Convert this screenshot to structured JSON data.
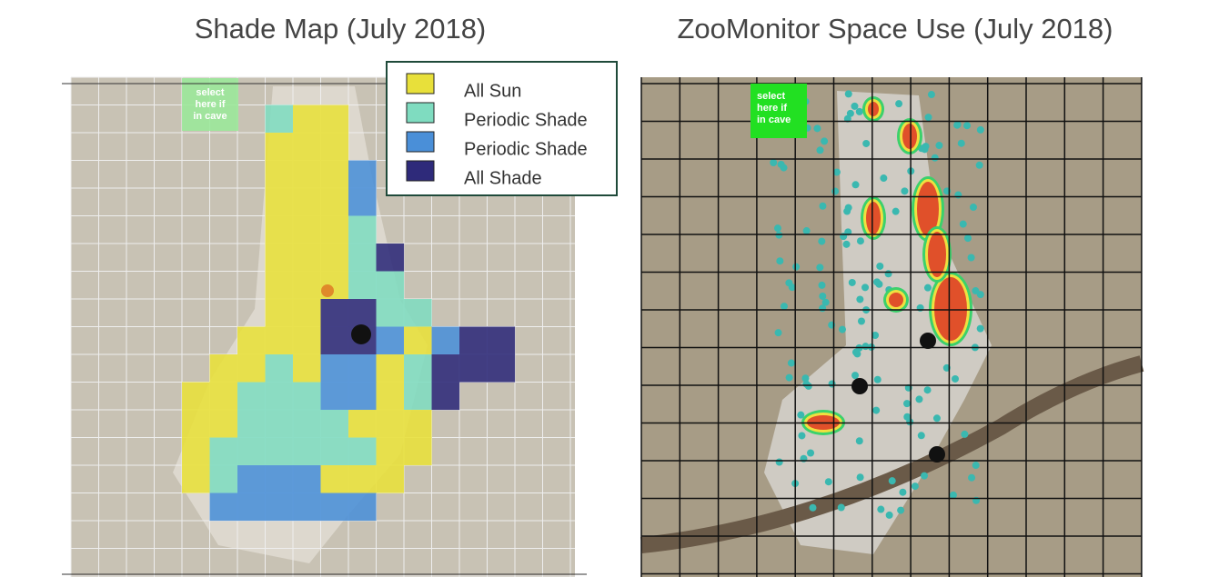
{
  "left_panel": {
    "title": "Shade Map (July 2018)",
    "cave_label": "select here if in cave",
    "legend": [
      {
        "label": "All Sun",
        "color": "#e8e03a"
      },
      {
        "label": "Periodic Shade",
        "color": "#7fdcc0"
      },
      {
        "label": "Periodic Shade",
        "color": "#4a8fd8"
      },
      {
        "label": "All Shade",
        "color": "#2e2a7a"
      }
    ]
  },
  "right_panel": {
    "title": "ZooMonitor Space Use (July 2018)",
    "cave_label": "select here if in cave"
  }
}
